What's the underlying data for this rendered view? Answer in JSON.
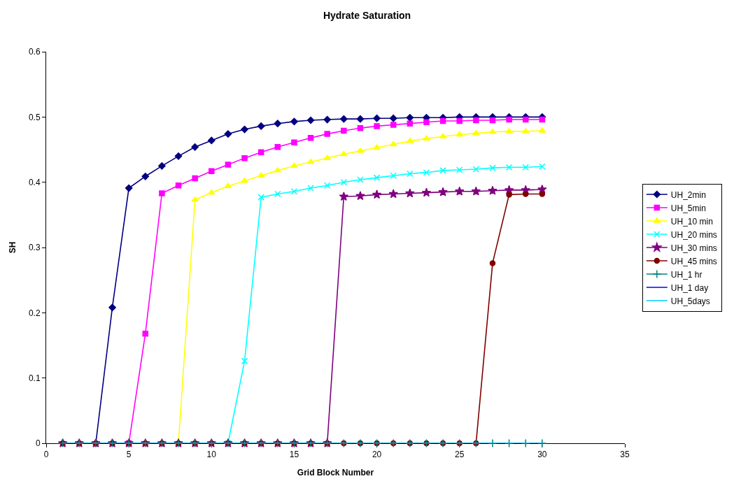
{
  "chart_data": {
    "type": "line",
    "title": "Hydrate Saturation",
    "xlabel": "Grid Block Number",
    "ylabel": "SH",
    "x": [
      1,
      2,
      3,
      4,
      5,
      6,
      7,
      8,
      9,
      10,
      11,
      12,
      13,
      14,
      15,
      16,
      17,
      18,
      19,
      20,
      21,
      22,
      23,
      24,
      25,
      26,
      27,
      28,
      29,
      30
    ],
    "xlim": [
      0,
      35
    ],
    "xticks": [
      0,
      5,
      10,
      15,
      20,
      25,
      30,
      35
    ],
    "ylim": [
      0,
      0.6
    ],
    "yticks": [
      0,
      0.1,
      0.2,
      0.3,
      0.4,
      0.5,
      0.6
    ],
    "grid": false,
    "legend": "right",
    "line_style": "solid",
    "series": [
      {
        "name": "UH_2min",
        "color": "#000080",
        "marker": "diamond",
        "values": [
          null,
          null,
          0,
          0.208,
          0.391,
          0.409,
          0.425,
          0.44,
          0.454,
          0.464,
          0.474,
          0.481,
          0.486,
          0.49,
          0.493,
          0.495,
          0.496,
          0.497,
          0.497,
          0.498,
          0.498,
          0.499,
          0.499,
          0.499,
          0.5,
          0.5,
          0.5,
          0.5,
          0.5,
          0.5
        ]
      },
      {
        "name": "UH_5min",
        "color": "#ff00ff",
        "marker": "square",
        "values": [
          null,
          null,
          null,
          null,
          0,
          0.168,
          0.383,
          0.395,
          0.406,
          0.417,
          0.427,
          0.437,
          0.446,
          0.454,
          0.461,
          0.468,
          0.474,
          0.479,
          0.483,
          0.486,
          0.488,
          0.49,
          0.492,
          0.494,
          0.494,
          0.495,
          0.495,
          0.496,
          0.496,
          0.496
        ]
      },
      {
        "name": "UH_10 min",
        "color": "#ffff00",
        "marker": "triangle",
        "values": [
          null,
          null,
          null,
          null,
          null,
          null,
          null,
          0,
          0.373,
          0.384,
          0.394,
          0.402,
          0.41,
          0.418,
          0.425,
          0.431,
          0.437,
          0.443,
          0.448,
          0.453,
          0.458,
          0.463,
          0.467,
          0.47,
          0.473,
          0.475,
          0.477,
          0.478,
          0.478,
          0.479
        ]
      },
      {
        "name": "UH_20 mins",
        "color": "#00ffff",
        "marker": "cross",
        "values": [
          null,
          null,
          null,
          null,
          null,
          null,
          null,
          null,
          null,
          null,
          0,
          0.126,
          0.377,
          0.382,
          0.386,
          0.391,
          0.395,
          0.4,
          0.404,
          0.407,
          0.41,
          0.413,
          0.415,
          0.418,
          0.419,
          0.42,
          0.422,
          0.423,
          0.423,
          0.424
        ]
      },
      {
        "name": "UH_30 mins",
        "color": "#800080",
        "marker": "star",
        "values": [
          0,
          0,
          0,
          0,
          0,
          0,
          0,
          0,
          0,
          0,
          0,
          0,
          0,
          0,
          0,
          0,
          0,
          0.378,
          0.379,
          0.381,
          0.382,
          0.383,
          0.384,
          0.385,
          0.386,
          0.386,
          0.387,
          0.388,
          0.388,
          0.389
        ]
      },
      {
        "name": "UH_45 mins",
        "color": "#800000",
        "marker": "circle",
        "values": [
          0,
          0,
          0,
          0,
          0,
          0,
          0,
          0,
          0,
          0,
          0,
          0,
          0,
          0,
          0,
          0,
          0,
          0,
          0,
          0,
          0,
          0,
          0,
          0,
          0,
          0,
          0.276,
          0.381,
          0.382,
          0.382
        ]
      },
      {
        "name": "UH_1 hr",
        "color": "#008080",
        "marker": "plus",
        "values": [
          0,
          0,
          0,
          0,
          0,
          0,
          0,
          0,
          0,
          0,
          0,
          0,
          0,
          0,
          0,
          0,
          0,
          0,
          0,
          0,
          0,
          0,
          0,
          0,
          0,
          0,
          0,
          0,
          0,
          0
        ]
      },
      {
        "name": "UH_1 day",
        "color": "#0000ff",
        "marker": "none",
        "values": [
          null,
          null,
          null,
          null,
          null,
          null,
          null,
          null,
          null,
          null,
          null,
          null,
          null,
          null,
          null,
          null,
          null,
          null,
          null,
          null,
          null,
          null,
          null,
          null,
          null,
          null,
          null,
          null,
          null,
          null
        ]
      },
      {
        "name": "UH_5days",
        "color": "#00ccff",
        "marker": "none",
        "values": [
          0,
          0,
          0,
          0,
          0,
          0,
          0,
          0,
          0,
          0,
          0,
          0,
          0,
          0,
          0,
          0,
          0,
          0,
          0,
          0,
          0,
          0,
          0,
          0,
          0,
          0,
          0,
          0,
          0,
          0
        ]
      }
    ]
  }
}
